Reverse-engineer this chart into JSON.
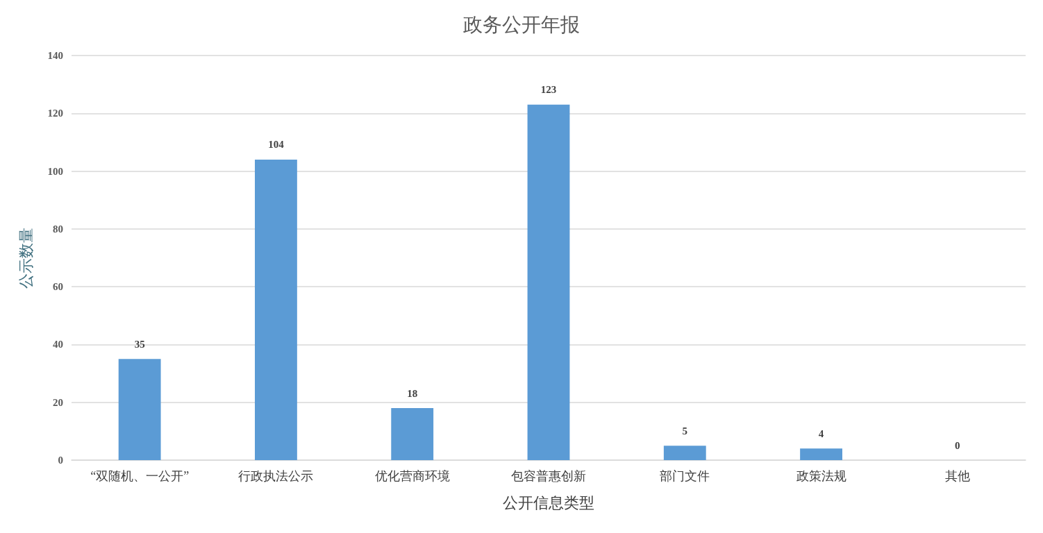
{
  "chart_data": {
    "type": "bar",
    "title": "政务公开年报",
    "xlabel": "公开信息类型",
    "ylabel": "公示数量",
    "categories": [
      "“双随机、一公开”",
      "行政执法公示",
      "优化营商环境",
      "包容普惠创新",
      "部门文件",
      "政策法规",
      "其他"
    ],
    "values": [
      35,
      104,
      18,
      123,
      5,
      4,
      0
    ],
    "color": "#5b9bd5",
    "ylim": [
      0,
      140
    ],
    "yticks": [
      0,
      20,
      40,
      60,
      80,
      100,
      120,
      140
    ],
    "grid": "y",
    "data_labels": true
  }
}
